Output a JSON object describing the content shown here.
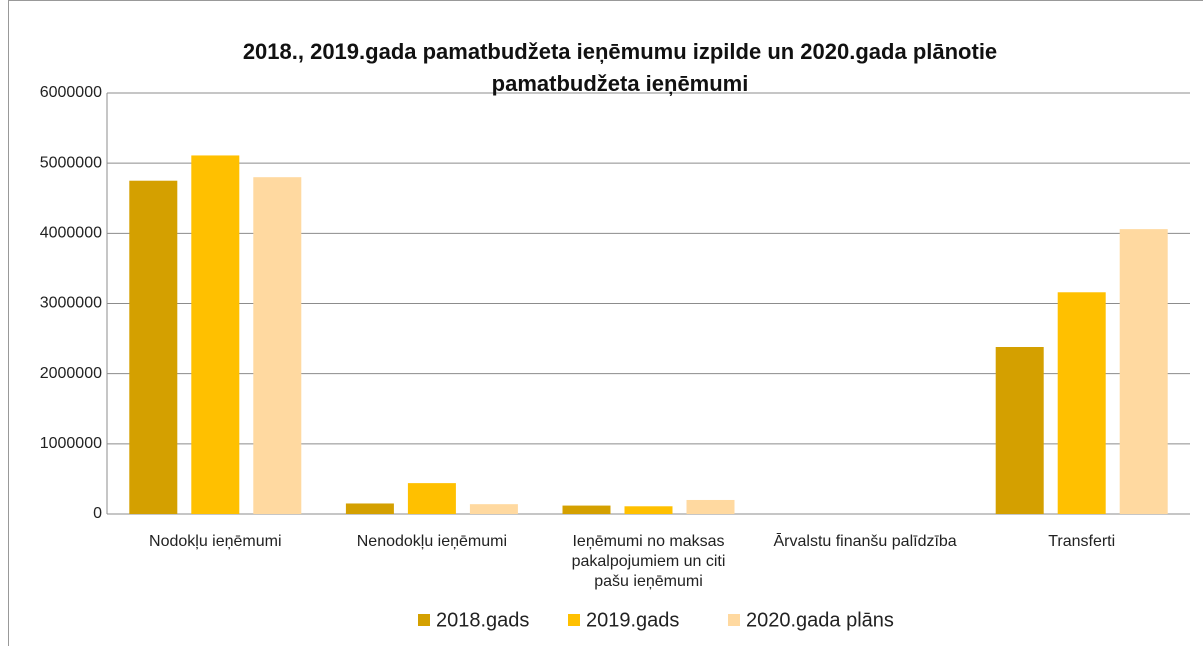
{
  "chart_data": {
    "type": "bar",
    "title": "2018., 2019.gada pamatbudžeta ieņēmumu izpilde un 2020.gada plānotie pamatbudžeta ieņēmumi",
    "categories": [
      "Nodokļu ieņēmumi",
      "Nenodokļu ieņēmumi",
      "Ieņēmumi no maksas pakalpojumiem un citi pašu ieņēmumi",
      "Ārvalstu finanšu palīdzība",
      "Transferti"
    ],
    "series": [
      {
        "name": "2018.gads",
        "color": "#d4a000",
        "values": [
          4750000,
          150000,
          120000,
          0,
          2380000
        ]
      },
      {
        "name": "2019.gads",
        "color": "#ffc000",
        "values": [
          5110000,
          440000,
          110000,
          0,
          3160000
        ]
      },
      {
        "name": "2020.gada plāns",
        "color": "#ffd9a0",
        "values": [
          4800000,
          140000,
          200000,
          0,
          4060000
        ]
      }
    ],
    "ylim": [
      0,
      6000000
    ],
    "yticks": [
      0,
      1000000,
      2000000,
      3000000,
      4000000,
      5000000,
      6000000
    ],
    "grid": true,
    "legend": "bottom"
  }
}
